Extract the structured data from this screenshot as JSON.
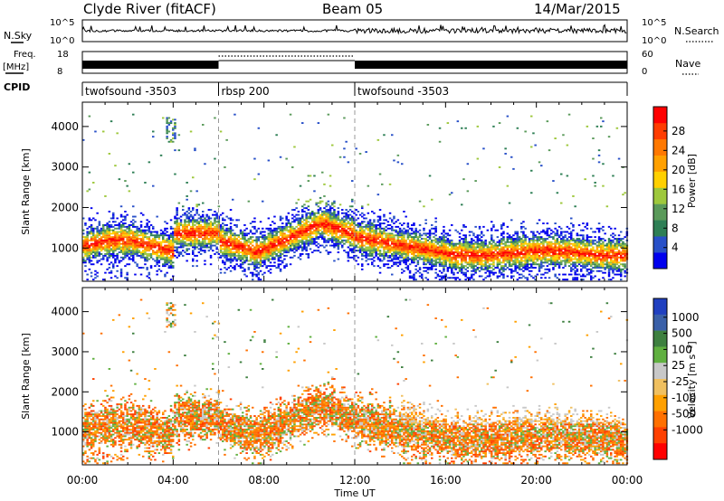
{
  "header": {
    "station": "Clyde River (fitACF)",
    "beam": "Beam 05",
    "date": "14/Mar/2015"
  },
  "summary": {
    "nsky_label": "N.Sky",
    "nsearch_label": "N.Search",
    "freq_label_1": "Freq.",
    "freq_label_2": "[MHz]",
    "nave_label": "Nave",
    "cpid_label": "CPID",
    "count_ticks": [
      "10^5",
      "10^0"
    ],
    "freq_ticks": [
      "18",
      "8"
    ],
    "nave_ticks": [
      "60",
      "0"
    ]
  },
  "cpid_segments": [
    {
      "label": "twofsound -3503",
      "start_hour": 0,
      "end_hour": 6
    },
    {
      "label": "rbsp 200",
      "start_hour": 6,
      "end_hour": 12
    },
    {
      "label": "twofsound -3503",
      "start_hour": 12,
      "end_hour": 24
    }
  ],
  "chart_data": [
    {
      "type": "heatmap",
      "title": "",
      "xlabel": "Time UT",
      "ylabel": "Slant Range [km]",
      "xlim": [
        0,
        24
      ],
      "ylim": [
        180,
        4600
      ],
      "x_ticks": [
        "00:00",
        "04:00",
        "08:00",
        "12:00",
        "16:00",
        "20:00",
        "00:00"
      ],
      "y_ticks": [
        1000,
        2000,
        3000,
        4000
      ],
      "colorbar": {
        "label": "Power [dB]",
        "ticks": [
          4,
          8,
          12,
          16,
          20,
          24,
          28
        ],
        "colors": [
          "#0000ee",
          "#2850c8",
          "#2e7f55",
          "#5a9a5a",
          "#9ec83c",
          "#ffd000",
          "#ffa000",
          "#ff7800",
          "#ff3c00",
          "#ff0000"
        ]
      }
    },
    {
      "type": "heatmap",
      "title": "",
      "xlabel": "Time UT",
      "ylabel": "Slant Range [km]",
      "xlim": [
        0,
        24
      ],
      "ylim": [
        180,
        4600
      ],
      "x_ticks": [
        "00:00",
        "04:00",
        "08:00",
        "12:00",
        "16:00",
        "20:00",
        "00:00"
      ],
      "y_ticks": [
        1000,
        2000,
        3000,
        4000
      ],
      "colorbar": {
        "label": "Velocity [m s⁻¹]",
        "ticks": [
          1000,
          500,
          100,
          25,
          -25,
          -100,
          -500,
          -1000
        ],
        "colors": [
          "#2040c0",
          "#3a60a8",
          "#3e8040",
          "#60b040",
          "#c8c8c8",
          "#f0c060",
          "#ffa000",
          "#ff7000",
          "#ff4000",
          "#ff0000"
        ]
      }
    }
  ]
}
